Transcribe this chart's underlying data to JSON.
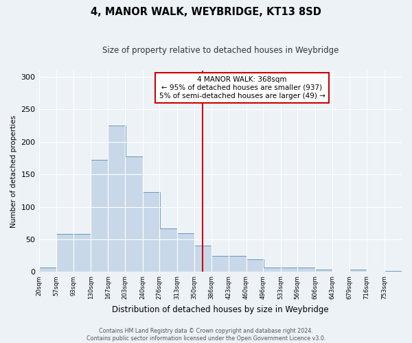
{
  "title": "4, MANOR WALK, WEYBRIDGE, KT13 8SD",
  "subtitle": "Size of property relative to detached houses in Weybridge",
  "xlabel": "Distribution of detached houses by size in Weybridge",
  "ylabel": "Number of detached properties",
  "bin_edges": [
    20,
    57,
    93,
    130,
    167,
    203,
    240,
    276,
    313,
    350,
    386,
    423,
    460,
    496,
    533,
    569,
    606,
    643,
    679,
    716,
    753
  ],
  "bar_heights": [
    7,
    58,
    58,
    172,
    225,
    178,
    123,
    67,
    60,
    41,
    25,
    25,
    19,
    7,
    7,
    7,
    4,
    0,
    4,
    0,
    2
  ],
  "bar_color": "#c8d8e8",
  "bar_edge_color": "#6699bb",
  "vline_x": 368,
  "vline_color": "#cc0000",
  "ylim": [
    0,
    310
  ],
  "yticks": [
    0,
    50,
    100,
    150,
    200,
    250,
    300
  ],
  "annotation_title": "4 MANOR WALK: 368sqm",
  "annotation_line1": "← 95% of detached houses are smaller (937)",
  "annotation_line2": "5% of semi-detached houses are larger (49) →",
  "annotation_box_color": "#cc0000",
  "footnote1": "Contains HM Land Registry data © Crown copyright and database right 2024.",
  "footnote2": "Contains public sector information licensed under the Open Government Licence v3.0.",
  "background_color": "#edf2f7",
  "grid_color": "#ffffff",
  "tick_labels": [
    "20sqm",
    "57sqm",
    "93sqm",
    "130sqm",
    "167sqm",
    "203sqm",
    "240sqm",
    "276sqm",
    "313sqm",
    "350sqm",
    "386sqm",
    "423sqm",
    "460sqm",
    "496sqm",
    "533sqm",
    "569sqm",
    "606sqm",
    "643sqm",
    "679sqm",
    "716sqm",
    "753sqm"
  ],
  "figsize": [
    6.0,
    5.0
  ],
  "dpi": 100
}
